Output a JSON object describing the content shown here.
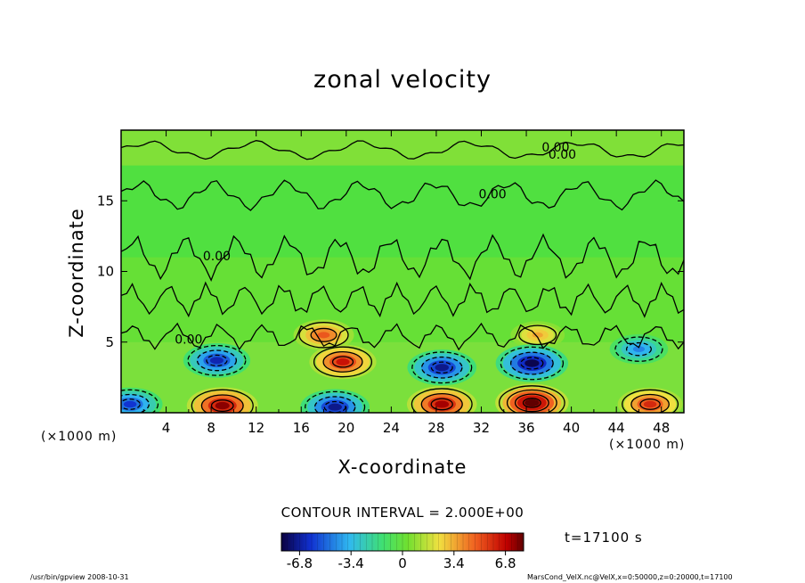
{
  "chart_data": {
    "type": "heatmap",
    "title": "zonal velocity",
    "xlabel": "X-coordinate",
    "ylabel": "Z-coordinate",
    "x_unit_left": "(×1000 m)",
    "x_unit_right": "(×1000 m)",
    "xlim": [
      0,
      50
    ],
    "ylim": [
      0,
      20
    ],
    "x_ticks": [
      4,
      8,
      12,
      16,
      20,
      24,
      28,
      32,
      36,
      40,
      44,
      48
    ],
    "y_ticks": [
      5,
      10,
      15
    ],
    "contour_interval_text": "CONTOUR INTERVAL = 2.000E+00",
    "contour_labels": [
      {
        "text": "0.00",
        "x": 38.6,
        "y": 18.8
      },
      {
        "text": "0.00",
        "x": 39.2,
        "y": 18.3
      },
      {
        "text": "0.00",
        "x": 33.0,
        "y": 15.5
      },
      {
        "text": "0.00",
        "x": 8.5,
        "y": 11.1
      },
      {
        "text": "0.00",
        "x": 6.0,
        "y": 5.2
      }
    ],
    "colorbar": {
      "range": [
        -8.0,
        8.0
      ],
      "tick_labels": [
        "-6.8",
        "-3.4",
        "0",
        "3.4",
        "6.8"
      ],
      "tick_values": [
        -6.8,
        -3.4,
        0,
        3.4,
        6.8
      ]
    },
    "time_label": "t=17100 s",
    "features": [
      {
        "type": "positive",
        "x": 9.0,
        "y": 0.5,
        "amp": 7.5
      },
      {
        "type": "positive",
        "x": 28.5,
        "y": 0.6,
        "amp": 7.2
      },
      {
        "type": "positive",
        "x": 36.5,
        "y": 0.7,
        "amp": 8.0
      },
      {
        "type": "positive",
        "x": 47.0,
        "y": 0.6,
        "amp": 6.0
      },
      {
        "type": "positive",
        "x": 18.0,
        "y": 5.5,
        "amp": 5.0
      },
      {
        "type": "positive",
        "x": 19.7,
        "y": 3.6,
        "amp": 6.5
      },
      {
        "type": "positive",
        "x": 37.0,
        "y": 5.5,
        "amp": 3.5
      },
      {
        "type": "negative",
        "x": 0.8,
        "y": 0.6,
        "amp": 6.0
      },
      {
        "type": "negative",
        "x": 19.0,
        "y": 0.4,
        "amp": 7.0
      },
      {
        "type": "negative",
        "x": 8.5,
        "y": 3.7,
        "amp": 6.5
      },
      {
        "type": "negative",
        "x": 28.5,
        "y": 3.2,
        "amp": 7.0
      },
      {
        "type": "negative",
        "x": 36.5,
        "y": 3.5,
        "amp": 7.8
      },
      {
        "type": "negative",
        "x": 46.0,
        "y": 4.5,
        "amp": 4.5
      }
    ]
  },
  "footer": {
    "left": "/usr/bin/gpview   2008-10-31",
    "right": "MarsCond_VelX.nc@VelX,x=0:50000,z=0:20000,t=17100"
  }
}
